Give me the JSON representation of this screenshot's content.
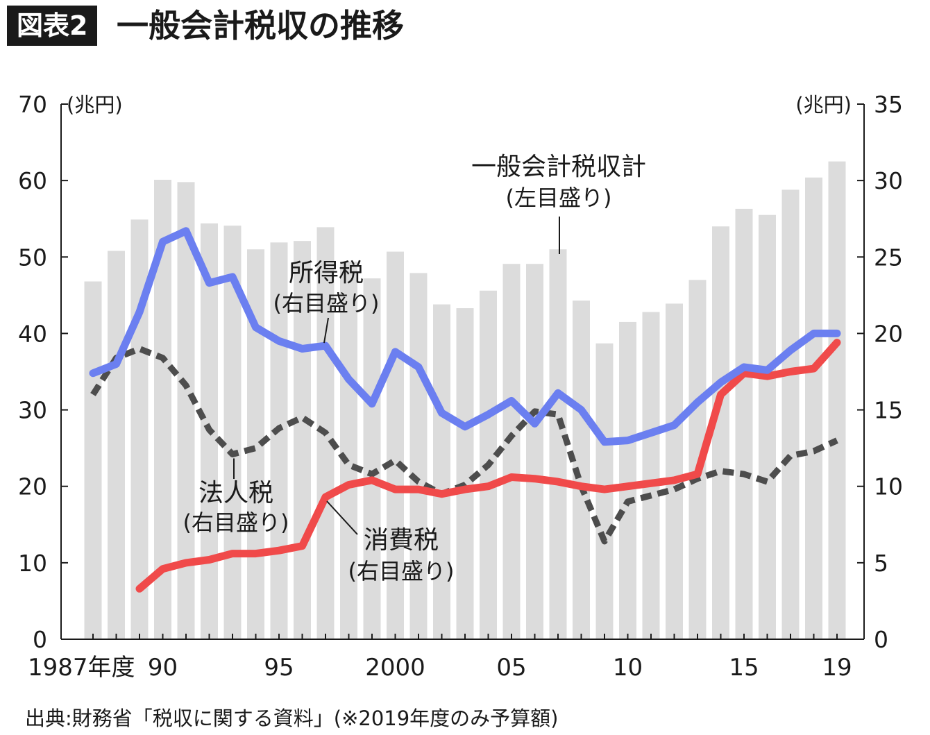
{
  "header": {
    "tag": "図表2",
    "title": "一般会計税収の推移"
  },
  "source_note": "出典:財務省「税収に関する資料」(※2019年度のみ予算額)",
  "colors": {
    "bars": "#dcdcdc",
    "income_tax": "#6b7ff0",
    "consumption_tax": "#f04a4a",
    "corporate_tax": "#4d4d4d",
    "axis": "#1a1a1a"
  },
  "chart_data": {
    "type": "bar+line",
    "left_axis": {
      "unit": "(兆円)",
      "range": [
        0,
        70
      ],
      "ticks": [
        "0",
        "10",
        "20",
        "30",
        "40",
        "50",
        "60",
        "70"
      ]
    },
    "right_axis": {
      "unit": "(兆円)",
      "range": [
        0,
        35
      ],
      "ticks": [
        "0",
        "5",
        "10",
        "15",
        "20",
        "25",
        "30",
        "35"
      ]
    },
    "x": [
      1987,
      1988,
      1989,
      1990,
      1991,
      1992,
      1993,
      1994,
      1995,
      1996,
      1997,
      1998,
      1999,
      2000,
      2001,
      2002,
      2003,
      2004,
      2005,
      2006,
      2007,
      2008,
      2009,
      2010,
      2011,
      2012,
      2013,
      2014,
      2015,
      2016,
      2017,
      2018,
      2019
    ],
    "x_tick_labels": [
      {
        "year": 1987,
        "label": "1987年度"
      },
      {
        "year": 1990,
        "label": "90"
      },
      {
        "year": 1995,
        "label": "95"
      },
      {
        "year": 2000,
        "label": "2000"
      },
      {
        "year": 2005,
        "label": "05"
      },
      {
        "year": 2010,
        "label": "10"
      },
      {
        "year": 2015,
        "label": "15"
      },
      {
        "year": 2019,
        "label": "19"
      }
    ],
    "series": [
      {
        "key": "total",
        "type": "bar",
        "axis": "left",
        "label": [
          "一般会計税収計",
          "(左目盛り)"
        ],
        "values": [
          46.8,
          50.8,
          54.9,
          60.1,
          59.8,
          54.4,
          54.1,
          51.0,
          51.9,
          52.1,
          53.9,
          49.4,
          47.2,
          50.7,
          47.9,
          43.8,
          43.3,
          45.6,
          49.1,
          49.1,
          51.0,
          44.3,
          38.7,
          41.5,
          42.8,
          43.9,
          47.0,
          54.0,
          56.3,
          55.5,
          58.8,
          60.4,
          62.5
        ]
      },
      {
        "key": "income_tax",
        "type": "line",
        "axis": "right",
        "label": [
          "所得税",
          "(右目盛り)"
        ],
        "values": [
          17.4,
          18.0,
          21.4,
          26.0,
          26.7,
          23.3,
          23.7,
          20.4,
          19.5,
          19.0,
          19.2,
          17.0,
          15.4,
          18.8,
          17.8,
          14.8,
          13.9,
          14.7,
          15.6,
          14.1,
          16.1,
          15.0,
          12.9,
          13.0,
          13.5,
          14.0,
          15.5,
          16.8,
          17.8,
          17.6,
          18.9,
          20.0,
          20.0
        ]
      },
      {
        "key": "consumption_tax",
        "type": "line",
        "axis": "right",
        "label": [
          "消費税",
          "(右目盛り)"
        ],
        "values": [
          null,
          null,
          3.3,
          4.6,
          5.0,
          5.2,
          5.6,
          5.6,
          5.8,
          6.1,
          9.3,
          10.1,
          10.4,
          9.8,
          9.8,
          9.5,
          9.8,
          10.0,
          10.6,
          10.5,
          10.3,
          10.0,
          9.8,
          10.0,
          10.2,
          10.4,
          10.8,
          16.0,
          17.4,
          17.2,
          17.5,
          17.7,
          19.4
        ]
      },
      {
        "key": "corporate_tax",
        "type": "line",
        "axis": "right",
        "label": [
          "法人税",
          "(右目盛り)"
        ],
        "values": [
          16.0,
          18.4,
          19.0,
          18.4,
          16.6,
          13.7,
          12.1,
          12.5,
          13.8,
          14.5,
          13.5,
          11.4,
          10.8,
          11.7,
          10.3,
          9.5,
          10.1,
          11.4,
          13.3,
          14.9,
          14.7,
          10.0,
          6.4,
          9.0,
          9.4,
          9.8,
          10.5,
          11.0,
          10.8,
          10.3,
          12.0,
          12.3,
          13.0
        ]
      }
    ]
  }
}
